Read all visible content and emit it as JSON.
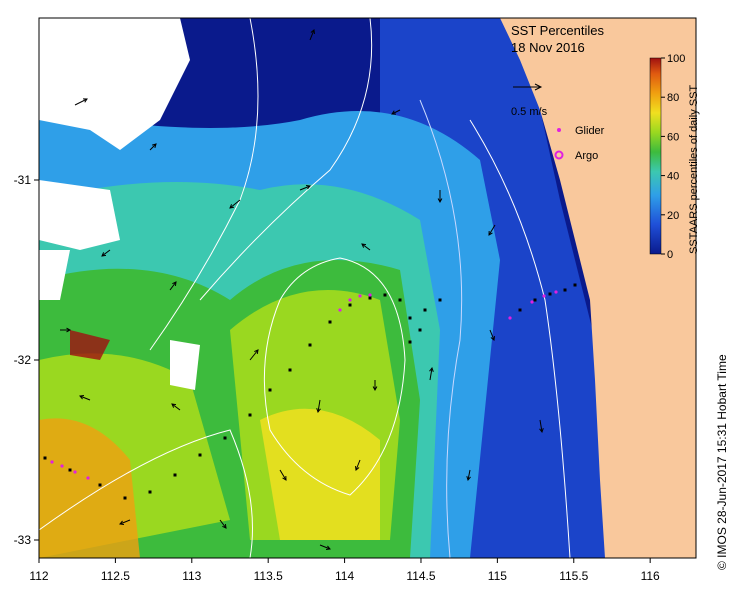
{
  "map": {
    "title": "SST Percentiles",
    "date": "18 Nov 2016",
    "vector_scale_label": "0.5 m/s",
    "legend": {
      "glider_label": "Glider",
      "argo_label": "Argo",
      "glider_color": "#e020e0",
      "argo_color": "#e020e0"
    },
    "credit": "© IMOS 28-Jun-2017 15:31 Hobart Time",
    "colorbar": {
      "title": "SSTAARS percentiles of daily SST",
      "ticks": [
        "0",
        "20",
        "40",
        "60",
        "80",
        "100"
      ],
      "colors": [
        "#0a1a8c",
        "#1f4fd8",
        "#2f9fe8",
        "#3cc8b0",
        "#3dbb3d",
        "#9ad820",
        "#f0e020",
        "#f0a010",
        "#e05a10",
        "#a01010"
      ]
    },
    "x_axis": {
      "ticks": [
        "112",
        "112.5",
        "113",
        "113.5",
        "114",
        "114.5",
        "115",
        "115.5",
        "116"
      ],
      "min": 112,
      "max": 116.3
    },
    "y_axis": {
      "ticks": [
        "-31",
        "-32",
        "-33"
      ],
      "min": -33.1,
      "max": -30.1
    },
    "land_color": "#f9c89c",
    "ocean_deep_color": "#0a1a8c"
  }
}
